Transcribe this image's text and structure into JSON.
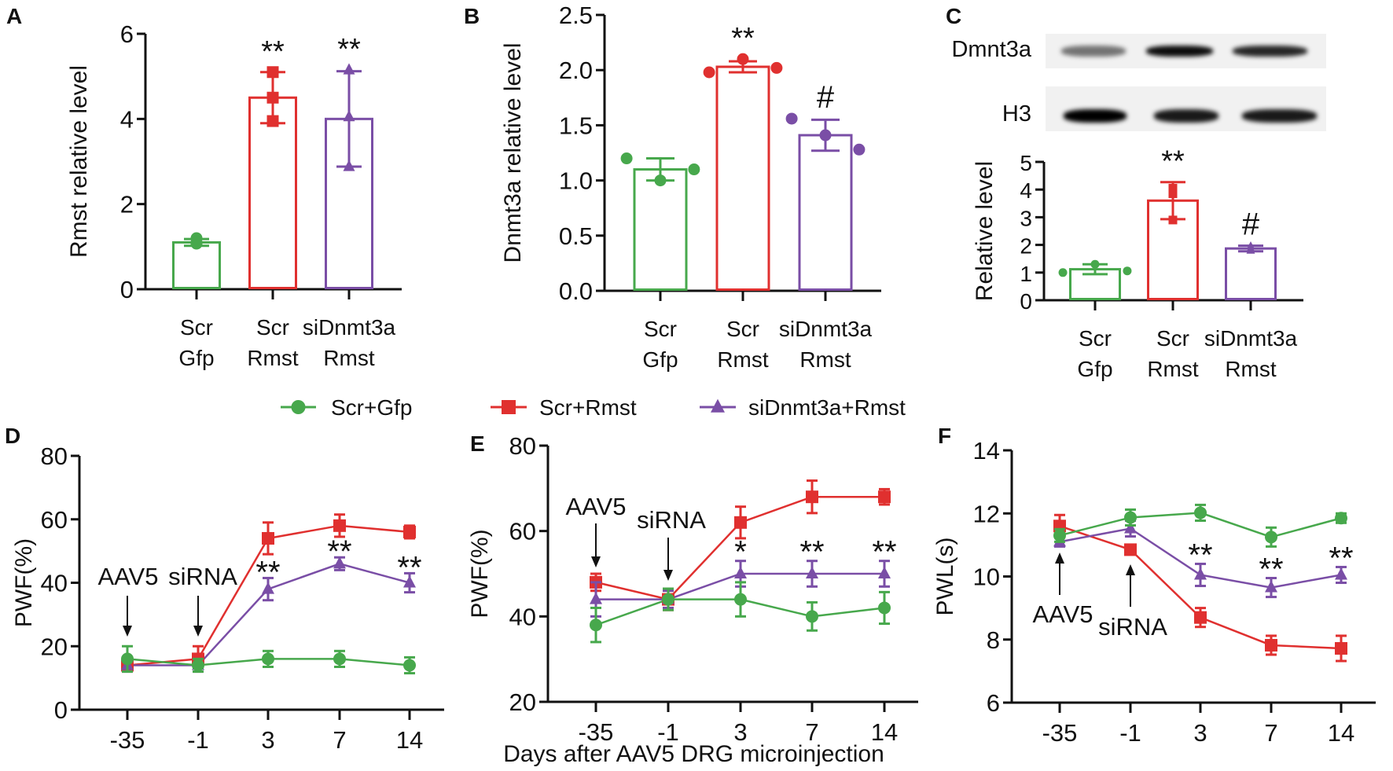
{
  "colors": {
    "green": "#47a84c",
    "red": "#e0302f",
    "purple": "#7a4ea6",
    "axis": "#111111"
  },
  "legend": [
    {
      "name": "Scr+Gfp",
      "color": "#47a84c",
      "marker": "circle"
    },
    {
      "name": "Scr+Rmst",
      "color": "#e0302f",
      "marker": "square"
    },
    {
      "name": "siDnmt3a+Rmst",
      "color": "#7a4ea6",
      "marker": "triangle"
    }
  ],
  "blot": {
    "panel": "C",
    "rows": [
      {
        "label": "Dmnt3a",
        "band_intensity": [
          0.55,
          0.95,
          0.85
        ]
      },
      {
        "label": "H3",
        "band_intensity": [
          1.0,
          0.9,
          0.9
        ]
      }
    ]
  },
  "chart_data": [
    {
      "panel": "A",
      "type": "bar",
      "ylabel": "Rmst relative level",
      "ylim": [
        0,
        6
      ],
      "yticks": [
        "0",
        "2",
        "4",
        "6"
      ],
      "categories": [
        [
          "Scr",
          "Gfp"
        ],
        [
          "Scr",
          "Rmst"
        ],
        [
          "siDnmt3a",
          "Rmst"
        ]
      ],
      "markers": [
        "circle",
        "square",
        "triangle"
      ],
      "means": [
        1.1,
        4.5,
        4.0
      ],
      "sd": [
        0.08,
        0.6,
        1.12
      ],
      "points": [
        [
          1.07,
          1.2,
          1.1
        ],
        [
          5.1,
          4.5,
          3.95
        ],
        [
          5.15,
          4.05,
          2.88
        ]
      ],
      "significance": [
        "",
        "**",
        "**"
      ]
    },
    {
      "panel": "B",
      "type": "bar",
      "ylabel": "Dnmt3a relative level",
      "ylim": [
        0,
        2.5
      ],
      "yticks": [
        "0.0",
        "0.5",
        "1.0",
        "1.5",
        "2.0",
        "2.5"
      ],
      "categories": [
        [
          "Scr",
          "Gfp"
        ],
        [
          "Scr",
          "Rmst"
        ],
        [
          "siDnmt3a",
          "Rmst"
        ]
      ],
      "markers": [
        "circle",
        "circle",
        "circle"
      ],
      "means": [
        1.1,
        2.03,
        1.41
      ],
      "sd": [
        0.1,
        0.05,
        0.14
      ],
      "points": [
        [
          1.2,
          1.0,
          1.1
        ],
        [
          1.98,
          2.1,
          2.02
        ],
        [
          1.56,
          1.41,
          1.28
        ]
      ],
      "significance": [
        "",
        "**",
        "#"
      ]
    },
    {
      "panel": "C",
      "type": "bar",
      "ylabel": "Relative level",
      "ylim": [
        0,
        5
      ],
      "yticks": [
        "0",
        "1",
        "2",
        "3",
        "4",
        "5"
      ],
      "categories": [
        [
          "Scr",
          "Gfp"
        ],
        [
          "Scr",
          "Rmst"
        ],
        [
          "siDnmt3a",
          "Rmst"
        ]
      ],
      "markers": [
        "circle",
        "square",
        "triangle"
      ],
      "means": [
        1.12,
        3.6,
        1.87
      ],
      "sd": [
        0.18,
        0.67,
        0.1
      ],
      "points": [
        [
          1.0,
          1.3,
          1.06
        ],
        [
          4.05,
          3.85,
          2.9
        ],
        [
          1.8,
          1.95,
          1.86
        ]
      ],
      "significance": [
        "",
        "**",
        "#"
      ]
    },
    {
      "panel": "D",
      "type": "line",
      "ylabel": "PWF(%)",
      "xlabel": "",
      "ylim": [
        0,
        80
      ],
      "yticks": [
        "0",
        "20",
        "40",
        "60",
        "80"
      ],
      "x": [
        "-35",
        "-1",
        "3",
        "7",
        "14"
      ],
      "series": [
        {
          "name": "Scr+Rmst",
          "values": [
            14,
            16,
            54,
            58,
            56
          ],
          "error": [
            2,
            4,
            5,
            3.5,
            2
          ]
        },
        {
          "name": "siDnmt3a+Rmst",
          "values": [
            14,
            14,
            38,
            46,
            40
          ],
          "error": [
            2,
            2,
            3.5,
            2,
            3
          ]
        },
        {
          "name": "Scr+Gfp",
          "values": [
            16,
            14,
            16,
            16,
            14
          ],
          "error": [
            4,
            2,
            2.5,
            2.5,
            2.5
          ]
        }
      ],
      "significance": [
        "",
        "",
        "**",
        "**",
        "**"
      ],
      "annotations": [
        {
          "text": "AAV5",
          "at": "-35"
        },
        {
          "text": "siRNA",
          "at": "-1"
        }
      ]
    },
    {
      "panel": "E",
      "type": "line",
      "ylabel": "PWF(%)",
      "xlabel": "Days after AAV5 DRG microinjection",
      "ylim": [
        20,
        80
      ],
      "yticks": [
        "20",
        "40",
        "60",
        "80"
      ],
      "x": [
        "-35",
        "-1",
        "3",
        "7",
        "14"
      ],
      "series": [
        {
          "name": "Scr+Rmst",
          "values": [
            48,
            44,
            62,
            68,
            68
          ],
          "error": [
            2,
            2.5,
            3.7,
            3.8,
            1.8
          ]
        },
        {
          "name": "siDnmt3a+Rmst",
          "values": [
            44,
            44,
            50,
            50,
            50
          ],
          "error": [
            4,
            2,
            3,
            3,
            3
          ]
        },
        {
          "name": "Scr+Gfp",
          "values": [
            38,
            44,
            44,
            40,
            42
          ],
          "error": [
            4,
            2.5,
            4,
            3.3,
            3.7
          ]
        }
      ],
      "significance": [
        "",
        "",
        "*",
        "**",
        "**"
      ],
      "annotations": [
        {
          "text": "AAV5",
          "at": "-35"
        },
        {
          "text": "siRNA",
          "at": "-1"
        }
      ]
    },
    {
      "panel": "F",
      "type": "line",
      "ylabel": "PWL(s)",
      "xlabel": "",
      "ylim": [
        6,
        14
      ],
      "yticks": [
        "6",
        "8",
        "10",
        "12",
        "14"
      ],
      "x": [
        "-35",
        "-1",
        "3",
        "7",
        "14"
      ],
      "series": [
        {
          "name": "Scr+Rmst",
          "values": [
            11.6,
            10.85,
            8.7,
            7.82,
            7.72
          ],
          "error": [
            0.35,
            0.15,
            0.3,
            0.3,
            0.4
          ]
        },
        {
          "name": "siDnmt3a+Rmst",
          "values": [
            11.1,
            11.52,
            10.05,
            9.65,
            10.05
          ],
          "error": [
            0.15,
            0.25,
            0.35,
            0.3,
            0.25
          ]
        },
        {
          "name": "Scr+Gfp",
          "values": [
            11.3,
            11.87,
            12.02,
            11.25,
            11.85
          ],
          "error": [
            0.2,
            0.25,
            0.25,
            0.3,
            0.15
          ]
        }
      ],
      "significance": [
        "",
        "",
        "**",
        "**",
        "**"
      ],
      "annotations": [
        {
          "text": "AAV5",
          "at": "-35"
        },
        {
          "text": "siRNA",
          "at": "-1"
        }
      ]
    }
  ]
}
